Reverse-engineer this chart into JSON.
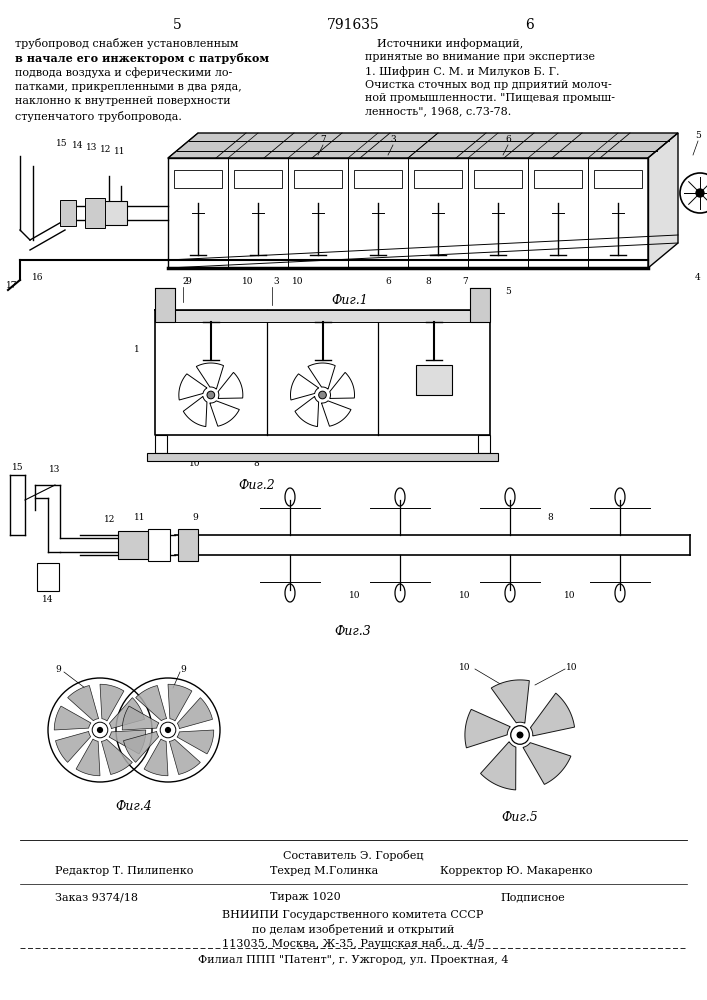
{
  "page_number_left": "5",
  "page_number_right": "6",
  "patent_number": "791635",
  "left_text_lines": [
    "трубопровод снабжен установленным",
    "в начале его инжектором с патрубком",
    "подвода воздуха и сферическими ло-",
    "патками, прикрепленными в два ряда,",
    "наклонно к внутренней поверхности",
    "ступенчатого трубопровода."
  ],
  "left_text_bold": [
    1
  ],
  "right_title": "Источники информаций,",
  "right_subtitle": "принятые во внимание при экспертизе",
  "right_ref": [
    "1. Шифрин С. М. и Милуков Б. Г.",
    "Очистка сточных вод пр дприятий молоч-",
    "ной промышленности. \"Пищевая промыш-",
    "ленность\", 1968, с.73-78."
  ],
  "fig1_label": "Фиг.1",
  "fig2_label": "Фиг.2",
  "fig3_label": "Фиг.3",
  "fig4_label": "Фиг.4",
  "fig5_label": "Фиг.5",
  "footer_composer": "Составитель Э. Горобец",
  "footer_editor": "Редактор Т. Пилипенко",
  "footer_tech": "Техред М.Голинка",
  "footer_corrector": "Корректор Ю. Макаренко",
  "footer_order": "Заказ 9374/18",
  "footer_circulation": "Тираж 1020",
  "footer_subscription": "Подписное",
  "footer_institute": "ВНИИПИ Государственного комитета СССР",
  "footer_affairs": "по делам изобретений и открытий",
  "footer_address": "113035, Москва, Ж-35, Раушская наб., д. 4/5",
  "footer_branch": "Филиал ППП \"Патент\", г. Ужгород, ул. Проектная, 4",
  "bg_color": "#ffffff",
  "lc": "#000000",
  "tc": "#000000"
}
